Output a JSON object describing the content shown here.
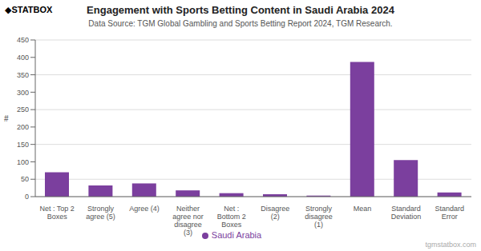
{
  "chart_data": {
    "type": "bar",
    "title": "Engagement with Sports Betting Content in Saudi Arabia 2024",
    "subtitle": "Data Source: TGM Global Gambling and Sports Betting Report 2024, TGM Research.",
    "ylabel": "#",
    "categories": [
      "Net : Top 2 Boxes",
      "Strongly agree (5)",
      "Agree (4)",
      "Neither agree nor\ndisagree (3)",
      "Net : Bottom 2\nBoxes",
      "Disagree (2)",
      "Strongly disagree\n(1)",
      "Mean",
      "Standard Deviation",
      "Standard Error"
    ],
    "series": [
      {
        "name": "Saudi Arabia",
        "color": "#7B3F9E",
        "values": [
          70,
          32,
          38,
          18,
          10,
          7,
          3,
          387,
          105,
          12
        ]
      }
    ],
    "ylim": [
      0,
      450
    ],
    "yticks": [
      0,
      50,
      100,
      150,
      200,
      250,
      300,
      350,
      400,
      450
    ],
    "grid": true,
    "legend": "bottom",
    "annotations": [
      "◆STATBOX",
      "tgmstatbox.com"
    ]
  }
}
